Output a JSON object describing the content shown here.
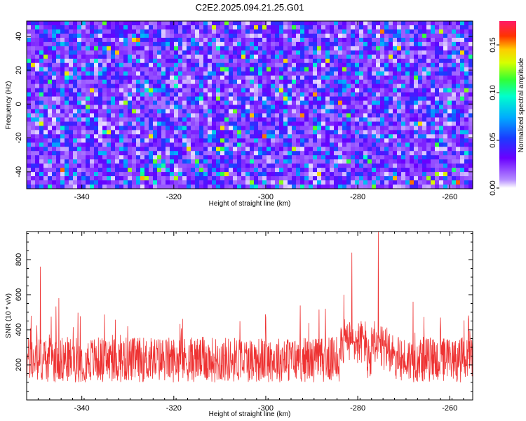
{
  "title": "C2E2.2025.094.21.25.G01",
  "chart_data": [
    {
      "type": "heatmap",
      "xlabel": "Height of straight line (km)",
      "ylabel": "Frequency (Hz)",
      "xlim": [
        -352,
        -255
      ],
      "ylim": [
        -50,
        49
      ],
      "x_ticks": [
        -340,
        -320,
        -300,
        -280,
        -260
      ],
      "y_ticks": [
        -40,
        -20,
        0,
        20,
        40
      ],
      "colorbar": {
        "label": "Normalized spectral amplitude",
        "range": [
          0,
          0.175
        ],
        "ticks": [
          0.0,
          0.05,
          0.1,
          0.15
        ],
        "tick_labels": [
          "0.00",
          "0.05",
          "0.10",
          "0.15"
        ],
        "colormap": "white-purple-blue-cyan-green-yellow-red-magenta"
      },
      "notes": "Speckled spectral amplitude field, mostly 0.00–0.06 with scattered peaks up to ~0.17"
    },
    {
      "type": "line",
      "xlabel": "Height of straight line (km)",
      "ylabel": "SNR (10 * v/v)",
      "xlim": [
        -352,
        -255
      ],
      "ylim": [
        0,
        960
      ],
      "x_ticks": [
        -340,
        -320,
        -300,
        -280,
        -260
      ],
      "y_ticks": [
        200,
        400,
        600,
        800
      ],
      "series": [
        {
          "color": "#ee3333",
          "description": "Noisy SNR trace, baseline ~150–350 with spikes; notable peaks near -349 (~760), -281 (~840) and -275.5 (~960)",
          "anchor_points": [
            {
              "x": -351,
              "y": 480
            },
            {
              "x": -349,
              "y": 760
            },
            {
              "x": -345,
              "y": 580
            },
            {
              "x": -330,
              "y": 420
            },
            {
              "x": -300,
              "y": 470
            },
            {
              "x": -287,
              "y": 520
            },
            {
              "x": -283,
              "y": 600
            },
            {
              "x": -281.3,
              "y": 840
            },
            {
              "x": -279,
              "y": 420
            },
            {
              "x": -275.5,
              "y": 960
            },
            {
              "x": -268,
              "y": 560
            },
            {
              "x": -262,
              "y": 470
            },
            {
              "x": -256,
              "y": 460
            }
          ]
        }
      ]
    }
  ]
}
